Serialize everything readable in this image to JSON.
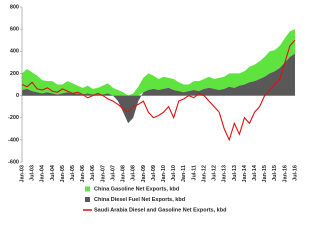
{
  "chart_data": {
    "type": "area",
    "categories": [
      "Jan-03",
      null,
      "Jul-03",
      null,
      "Jan-04",
      null,
      "Jul-04",
      null,
      "Jan-05",
      null,
      "Jul-05",
      null,
      "Jan-06",
      null,
      "Jul-06",
      null,
      "Jan-07",
      null,
      "Jul-07",
      null,
      "Jan-08",
      null,
      "Jul-08",
      null,
      "Jan-09",
      null,
      "Jul-09",
      null,
      "Jan-10",
      null,
      "Jul-10",
      null,
      "Jan-11",
      null,
      "Jul-11",
      null,
      "Jan-12",
      null,
      "Jul-12",
      null,
      "Jan-13",
      null,
      "Jul-13",
      null,
      "Jan-14",
      null,
      "Jul-14",
      null,
      "Jan-15",
      null,
      "Jul-15",
      null,
      "Jan-16",
      null,
      "Jul-16"
    ],
    "series": [
      {
        "name": "China Gasoline Net Exports, kbd",
        "color": "#5fe33f",
        "kind": "area",
        "values": [
          150,
          180,
          170,
          150,
          120,
          100,
          110,
          90,
          80,
          100,
          90,
          70,
          60,
          70,
          50,
          60,
          80,
          90,
          70,
          50,
          30,
          0,
          20,
          80,
          130,
          150,
          120,
          100,
          110,
          90,
          100,
          80,
          70,
          60,
          80,
          90,
          90,
          100,
          90,
          110,
          110,
          120,
          130,
          110,
          120,
          140,
          150,
          160,
          180,
          200,
          190,
          200,
          220,
          230,
          220
        ]
      },
      {
        "name": "China Diesel Fuel Net Exports, kbd",
        "color": "#595959",
        "kind": "area",
        "values": [
          50,
          60,
          40,
          30,
          20,
          30,
          20,
          10,
          20,
          30,
          20,
          20,
          10,
          20,
          10,
          10,
          10,
          20,
          0,
          -50,
          -150,
          -250,
          -200,
          -50,
          30,
          50,
          60,
          50,
          60,
          70,
          50,
          40,
          30,
          40,
          50,
          40,
          60,
          70,
          60,
          50,
          60,
          80,
          70,
          90,
          100,
          120,
          130,
          150,
          170,
          200,
          220,
          250,
          300,
          350,
          380
        ]
      },
      {
        "name": "Saudi Arabia Diesel and Gasoline Net Exports, kbd",
        "color": "#e01010",
        "kind": "line",
        "values": [
          100,
          80,
          120,
          60,
          50,
          70,
          40,
          30,
          60,
          40,
          20,
          30,
          10,
          -20,
          0,
          20,
          0,
          -30,
          -50,
          -80,
          -120,
          -150,
          -100,
          -80,
          -50,
          -150,
          -200,
          -180,
          -150,
          -100,
          -200,
          -50,
          -30,
          0,
          -20,
          20,
          0,
          -50,
          -100,
          -150,
          -300,
          -400,
          -250,
          -350,
          -200,
          -250,
          -150,
          -100,
          0,
          50,
          100,
          150,
          300,
          450,
          500
        ]
      }
    ],
    "ylim": [
      -600,
      800
    ],
    "yticks": [
      -600,
      -400,
      -200,
      0,
      200,
      400,
      600,
      800
    ]
  }
}
